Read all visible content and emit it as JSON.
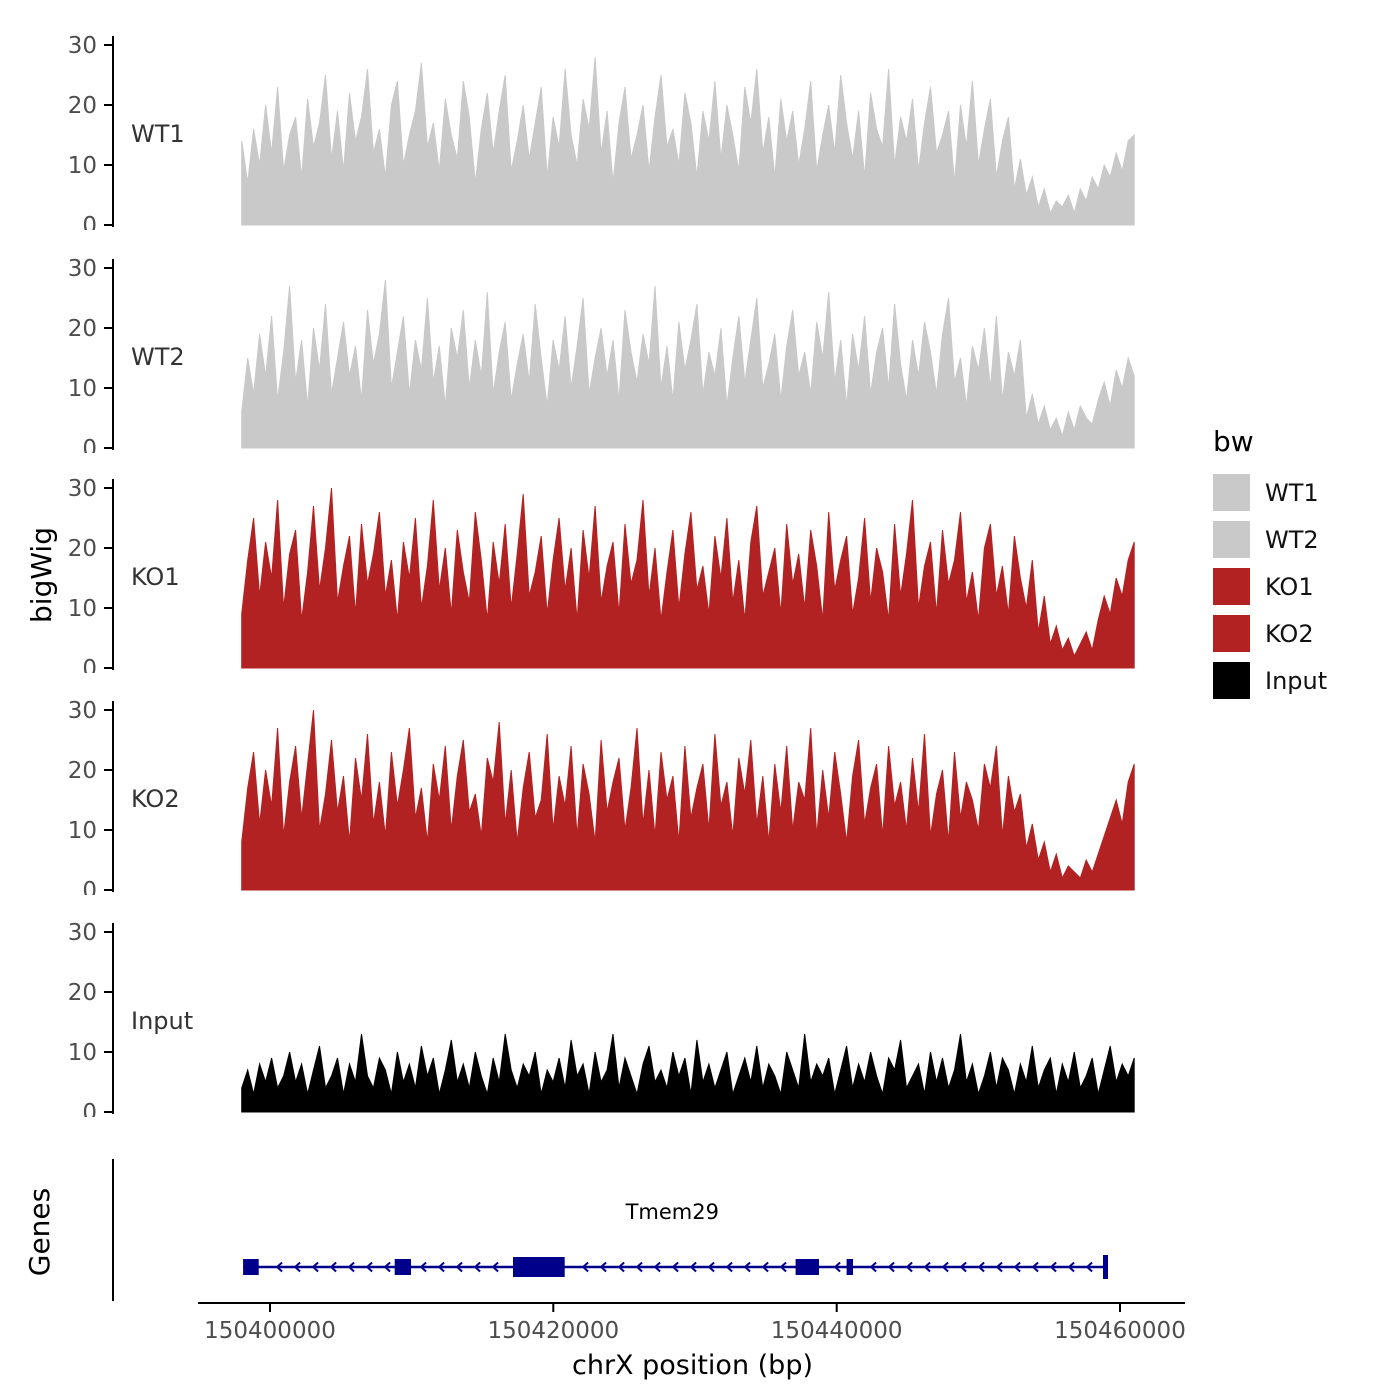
{
  "chart_data": {
    "type": "area",
    "title": "",
    "xlabel": "chrX position (bp)",
    "ylabel": "bigWig",
    "x_range_bp": [
      150398000,
      150461000
    ],
    "ylim": [
      0,
      30
    ],
    "y_ticks": [
      0,
      10,
      20,
      30
    ],
    "x_ticks": [
      {
        "bp": 150400000,
        "label": "150400000"
      },
      {
        "bp": 150420000,
        "label": "150420000"
      },
      {
        "bp": 150440000,
        "label": "150440000"
      },
      {
        "bp": 150460000,
        "label": "150460000"
      }
    ],
    "series": [
      {
        "name": "WT1",
        "color": "#C9C9C9",
        "values": [
          14,
          7,
          16,
          10,
          20,
          12,
          23,
          9,
          15,
          18,
          8,
          21,
          13,
          17,
          25,
          11,
          19,
          9,
          22,
          14,
          18,
          26,
          12,
          16,
          8,
          20,
          24,
          10,
          15,
          19,
          27,
          13,
          17,
          9,
          21,
          15,
          11,
          24,
          18,
          7,
          16,
          22,
          12,
          19,
          25,
          9,
          14,
          20,
          11,
          17,
          23,
          8,
          18,
          13,
          26,
          15,
          10,
          21,
          16,
          28,
          12,
          19,
          7,
          17,
          23,
          11,
          15,
          20,
          9,
          18,
          25,
          13,
          16,
          10,
          22,
          17,
          8,
          19,
          14,
          24,
          11,
          20,
          15,
          9,
          23,
          17,
          26,
          12,
          18,
          8,
          21,
          14,
          19,
          10,
          16,
          24,
          9,
          15,
          20,
          12,
          25,
          17,
          11,
          19,
          8,
          22,
          16,
          13,
          26,
          10,
          18,
          14,
          21,
          9,
          17,
          23,
          12,
          15,
          19,
          7,
          20,
          13,
          24,
          10,
          16,
          21,
          8,
          14,
          18,
          6,
          11,
          5,
          8,
          3,
          6,
          2,
          4,
          3,
          5,
          2,
          6,
          4,
          8,
          6,
          10,
          8,
          12,
          9,
          14,
          15
        ]
      },
      {
        "name": "WT2",
        "color": "#C9C9C9",
        "values": [
          6,
          15,
          9,
          19,
          12,
          22,
          8,
          16,
          27,
          11,
          18,
          7,
          20,
          13,
          24,
          9,
          15,
          21,
          12,
          17,
          8,
          23,
          14,
          19,
          28,
          10,
          16,
          22,
          9,
          18,
          13,
          25,
          11,
          17,
          7,
          20,
          15,
          23,
          10,
          18,
          12,
          26,
          9,
          16,
          21,
          8,
          14,
          19,
          11,
          24,
          15,
          7,
          18,
          13,
          22,
          10,
          17,
          25,
          9,
          15,
          20,
          12,
          18,
          8,
          23,
          16,
          11,
          19,
          14,
          27,
          10,
          17,
          8,
          21,
          13,
          18,
          24,
          9,
          16,
          12,
          20,
          7,
          15,
          22,
          11,
          18,
          25,
          10,
          14,
          19,
          8,
          17,
          23,
          12,
          16,
          9,
          21,
          15,
          26,
          11,
          18,
          7,
          19,
          13,
          22,
          9,
          16,
          20,
          10,
          24,
          14,
          8,
          18,
          12,
          21,
          16,
          9,
          19,
          25,
          11,
          15,
          7,
          17,
          13,
          20,
          10,
          22,
          8,
          16,
          12,
          18,
          5,
          9,
          4,
          7,
          3,
          5,
          2,
          6,
          3,
          7,
          5,
          4,
          8,
          11,
          7,
          13,
          10,
          15,
          12
        ]
      },
      {
        "name": "KO1",
        "color": "#B22222",
        "values": [
          9,
          18,
          25,
          12,
          21,
          15,
          28,
          10,
          19,
          23,
          8,
          16,
          27,
          13,
          20,
          30,
          11,
          17,
          22,
          9,
          24,
          14,
          19,
          26,
          12,
          18,
          8,
          21,
          15,
          25,
          10,
          17,
          28,
          13,
          20,
          9,
          23,
          16,
          11,
          26,
          18,
          8,
          21,
          14,
          24,
          10,
          19,
          29,
          12,
          16,
          22,
          9,
          18,
          25,
          13,
          20,
          8,
          23,
          15,
          27,
          11,
          17,
          21,
          9,
          24,
          14,
          18,
          28,
          12,
          20,
          8,
          16,
          23,
          10,
          19,
          26,
          13,
          17,
          9,
          22,
          15,
          25,
          11,
          18,
          8,
          21,
          27,
          12,
          16,
          20,
          9,
          24,
          14,
          19,
          10,
          23,
          17,
          8,
          26,
          13,
          18,
          22,
          9,
          15,
          25,
          11,
          20,
          16,
          8,
          24,
          12,
          19,
          28,
          10,
          17,
          21,
          9,
          23,
          14,
          18,
          26,
          11,
          16,
          8,
          20,
          24,
          12,
          17,
          9,
          22,
          15,
          10,
          18,
          6,
          12,
          4,
          7,
          3,
          5,
          2,
          4,
          6,
          3,
          8,
          12,
          9,
          15,
          12,
          18,
          21
        ]
      },
      {
        "name": "KO2",
        "color": "#B22222",
        "values": [
          8,
          17,
          23,
          11,
          20,
          14,
          27,
          9,
          18,
          24,
          12,
          21,
          30,
          10,
          16,
          25,
          13,
          19,
          8,
          22,
          15,
          26,
          11,
          18,
          9,
          23,
          14,
          20,
          27,
          12,
          17,
          8,
          21,
          15,
          24,
          10,
          19,
          25,
          13,
          16,
          9,
          22,
          18,
          28,
          11,
          20,
          8,
          17,
          23,
          12,
          15,
          26,
          10,
          19,
          14,
          24,
          9,
          21,
          16,
          8,
          25,
          13,
          18,
          22,
          10,
          17,
          27,
          11,
          20,
          9,
          23,
          15,
          19,
          8,
          24,
          12,
          17,
          21,
          10,
          26,
          14,
          18,
          9,
          22,
          16,
          25,
          11,
          19,
          8,
          21,
          13,
          24,
          10,
          18,
          15,
          27,
          9,
          20,
          12,
          23,
          16,
          8,
          19,
          25,
          11,
          17,
          21,
          9,
          24,
          14,
          18,
          10,
          22,
          13,
          26,
          9,
          16,
          20,
          8,
          23,
          12,
          18,
          15,
          10,
          21,
          17,
          24,
          9,
          19,
          13,
          16,
          7,
          11,
          5,
          8,
          3,
          6,
          2,
          4,
          3,
          2,
          5,
          3,
          6,
          9,
          12,
          15,
          11,
          18,
          21
        ]
      },
      {
        "name": "Input",
        "color": "#000000",
        "values": [
          4,
          7,
          3,
          8,
          5,
          9,
          4,
          6,
          10,
          5,
          8,
          3,
          7,
          11,
          4,
          6,
          9,
          3,
          8,
          5,
          13,
          6,
          4,
          9,
          7,
          3,
          10,
          5,
          8,
          4,
          11,
          6,
          9,
          3,
          7,
          12,
          5,
          8,
          4,
          10,
          6,
          3,
          9,
          5,
          13,
          7,
          4,
          8,
          6,
          10,
          3,
          7,
          5,
          9,
          4,
          12,
          6,
          8,
          3,
          10,
          5,
          7,
          13,
          4,
          9,
          6,
          3,
          8,
          11,
          5,
          7,
          4,
          10,
          6,
          9,
          3,
          12,
          5,
          8,
          4,
          7,
          10,
          3,
          6,
          9,
          5,
          11,
          4,
          8,
          6,
          3,
          10,
          7,
          4,
          13,
          5,
          8,
          6,
          9,
          3,
          7,
          11,
          4,
          8,
          5,
          10,
          6,
          3,
          9,
          7,
          12,
          4,
          6,
          8,
          3,
          10,
          5,
          9,
          4,
          7,
          13,
          5,
          8,
          3,
          6,
          10,
          4,
          9,
          7,
          3,
          8,
          5,
          11,
          4,
          7,
          9,
          3,
          8,
          5,
          10,
          4,
          6,
          9,
          3,
          7,
          11,
          5,
          8,
          6,
          9
        ]
      }
    ],
    "gene_track": {
      "panel_title": "Genes",
      "gene": {
        "name": "Tmem29",
        "strand": "-",
        "color": "#00008B",
        "start": 150398100,
        "end": 150459150,
        "label_bp": 150428400,
        "exons": [
          {
            "start": 150398100,
            "end": 150399200,
            "h": 16
          },
          {
            "start": 150408800,
            "end": 150409950,
            "h": 16
          },
          {
            "start": 150417150,
            "end": 150420800,
            "h": 20
          },
          {
            "start": 150437100,
            "end": 150438750,
            "h": 16
          },
          {
            "start": 150440700,
            "end": 150441150,
            "h": 16
          },
          {
            "start": 150458800,
            "end": 150459150,
            "h": 24
          }
        ]
      }
    },
    "legend": {
      "title": "bw",
      "items": [
        {
          "label": "WT1",
          "color": "#C9C9C9"
        },
        {
          "label": "WT2",
          "color": "#C9C9C9"
        },
        {
          "label": "KO1",
          "color": "#B22222"
        },
        {
          "label": "KO2",
          "color": "#B22222"
        },
        {
          "label": "Input",
          "color": "#000000"
        }
      ]
    }
  }
}
